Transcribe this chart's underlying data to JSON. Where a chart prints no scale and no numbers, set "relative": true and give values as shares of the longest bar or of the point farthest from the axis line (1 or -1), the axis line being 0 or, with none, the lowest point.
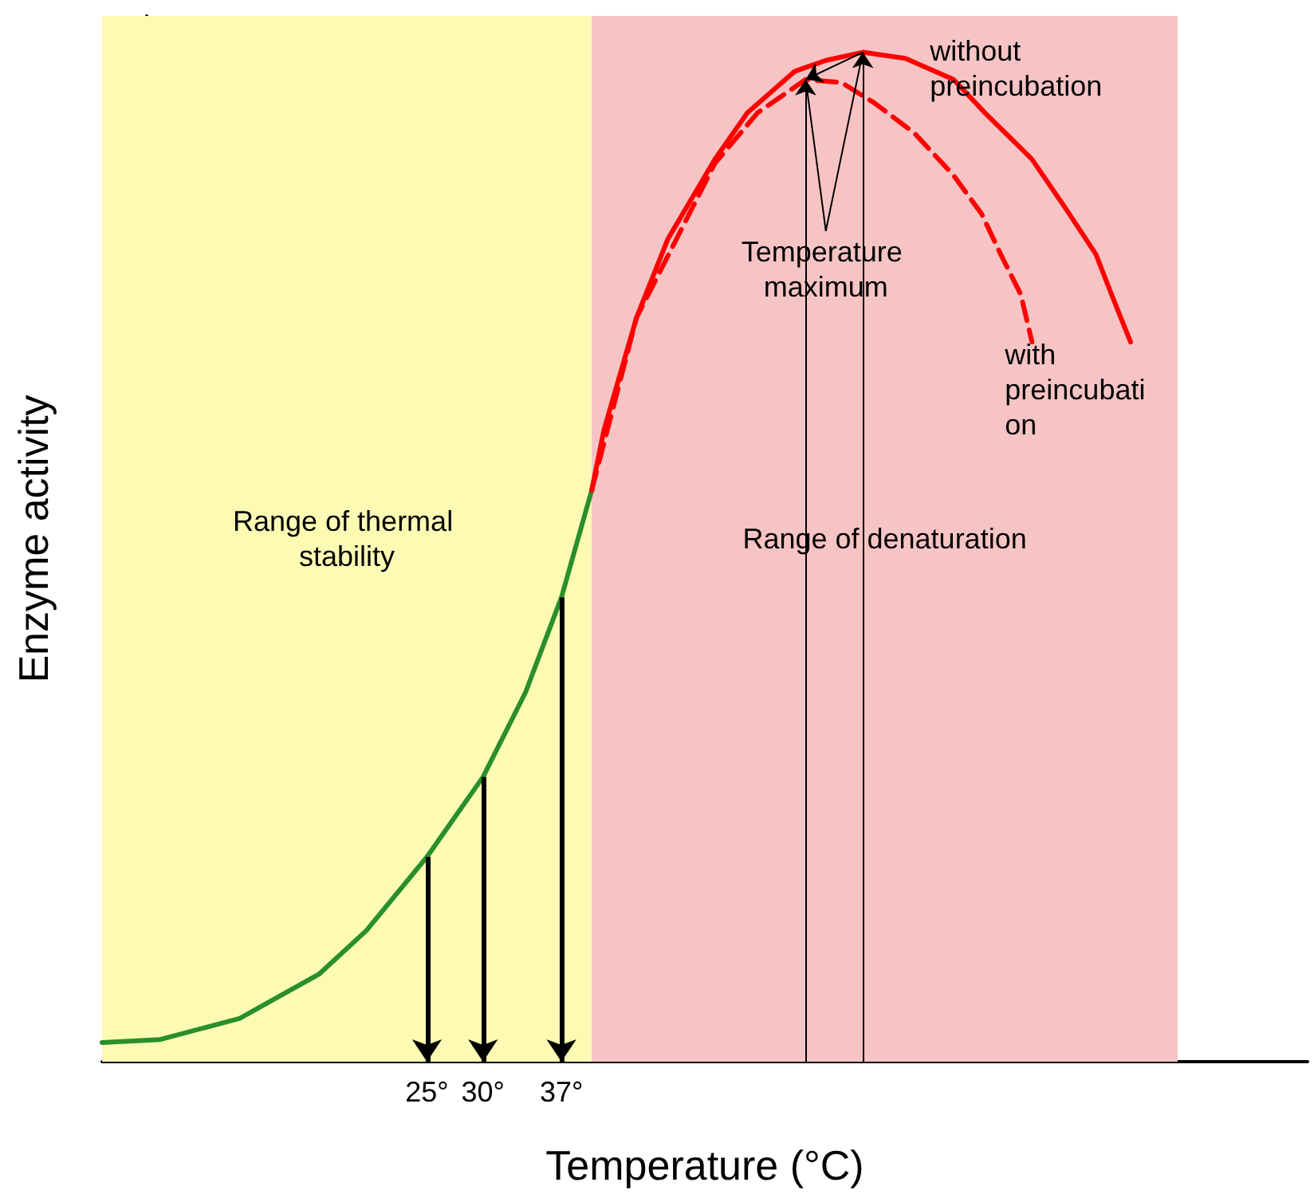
{
  "chart_data": {
    "type": "line",
    "relative": true,
    "xlabel": "Temperature (°C)",
    "ylabel": "Enzyme activity",
    "xlim": [
      -4,
      103.6
    ],
    "xticks": [
      {
        "value": 25,
        "label": "25°"
      },
      {
        "value": 30,
        "label": "30°"
      },
      {
        "value": 37,
        "label": "37°"
      }
    ],
    "tick_labels": "x",
    "grid": false,
    "legend": false,
    "marker": "none",
    "series": [
      {
        "color": "#2a8f2a",
        "line_style": "solid",
        "x": [
          -4,
          1.2,
          8.3,
          15.4,
          19.6,
          25,
          30,
          33.8,
          37,
          39.7
        ],
        "values": [
          0.019,
          0.022,
          0.043,
          0.087,
          0.13,
          0.203,
          0.282,
          0.366,
          0.46,
          0.566
        ]
      },
      {
        "name": "without preincubation",
        "color": "#ff0000",
        "line_style": "solid",
        "x": [
          39.7,
          40.8,
          43.7,
          46.5,
          50.7,
          53.6,
          57.8,
          60.6,
          63.9,
          67.7,
          72,
          74.8,
          79,
          81.9,
          84.7,
          86.1,
          87.8
        ],
        "values": [
          0.566,
          0.626,
          0.737,
          0.815,
          0.894,
          0.94,
          0.981,
          0.992,
          1,
          0.994,
          0.973,
          0.94,
          0.894,
          0.847,
          0.8,
          0.76,
          0.713
        ]
      },
      {
        "name": "with preincubation",
        "color": "#ff0000",
        "line_style": "dashed",
        "x": [
          39.7,
          43.7,
          50.7,
          54.5,
          58.8,
          62,
          64.9,
          68.5,
          72,
          74.5,
          76.2,
          78,
          79
        ],
        "values": [
          0.566,
          0.737,
          0.89,
          0.94,
          0.973,
          0.97,
          0.95,
          0.92,
          0.878,
          0.84,
          0.8,
          0.76,
          0.713
        ]
      }
    ],
    "bands": [
      {
        "axis": "x",
        "from": -4,
        "to": 39.7,
        "label": "Range of thermal stability",
        "color": "#fdfbb3"
      },
      {
        "axis": "x",
        "from": 39.7,
        "to": 92,
        "label": "Range of denaturation",
        "color": "#f6c4c4"
      }
    ],
    "ref_lines": [
      {
        "axis": "x",
        "value": 58.8
      },
      {
        "axis": "x",
        "value": 63.9
      }
    ],
    "annotations": [
      {
        "text": "Temperature maximum",
        "x": 58.8,
        "y": 0.973
      }
    ]
  }
}
